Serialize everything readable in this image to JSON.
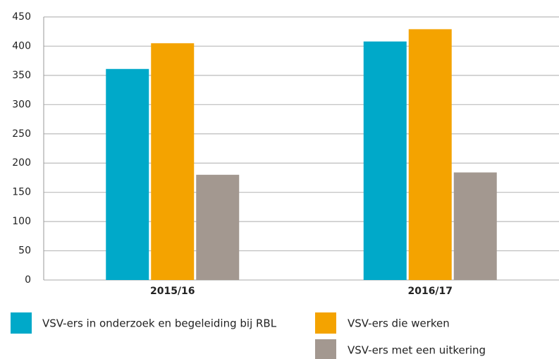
{
  "chart_data": {
    "type": "bar",
    "categories": [
      "2015/16",
      "2016/17"
    ],
    "series": [
      {
        "name": "VSV-ers in onderzoek en begeleiding bij RBL",
        "color": "#00a9c9",
        "values": [
          361,
          408
        ]
      },
      {
        "name": "VSV-ers die werken",
        "color": "#f4a300",
        "values": [
          405,
          429
        ]
      },
      {
        "name": "VSV-ers met een uitkering",
        "color": "#a39890",
        "values": [
          180,
          184
        ]
      }
    ],
    "ylim": [
      0,
      450
    ],
    "yticks": [
      0,
      50,
      100,
      150,
      200,
      250,
      300,
      350,
      400,
      450
    ],
    "grid": true
  }
}
